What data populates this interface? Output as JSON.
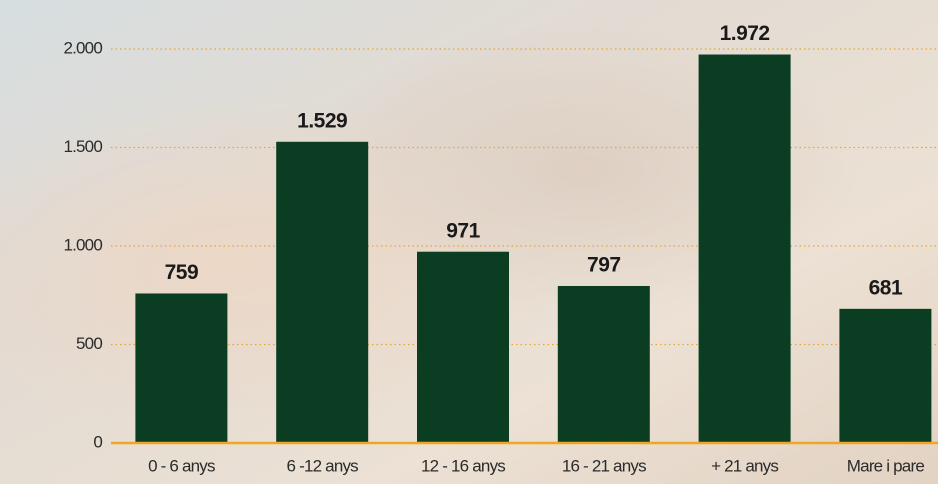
{
  "chart_data": {
    "type": "bar",
    "categories": [
      "0 - 6 anys",
      "6 -12 anys",
      "12 - 16 anys",
      "16 - 21 anys",
      "+ 21 anys",
      "Mare i pare"
    ],
    "values": [
      759,
      1529,
      971,
      797,
      1972,
      681
    ],
    "value_labels": [
      "759",
      "1.529",
      "971",
      "797",
      "1.972",
      "681"
    ],
    "color": "#0b3d22",
    "ylim": [
      0,
      2000
    ],
    "yticks": [
      0,
      500,
      {
        "value": 1000,
        "label": "1.000"
      },
      {
        "value": 1500,
        "label": "1.500"
      },
      {
        "value": 2000,
        "label": "2.000"
      }
    ],
    "grid": true
  }
}
